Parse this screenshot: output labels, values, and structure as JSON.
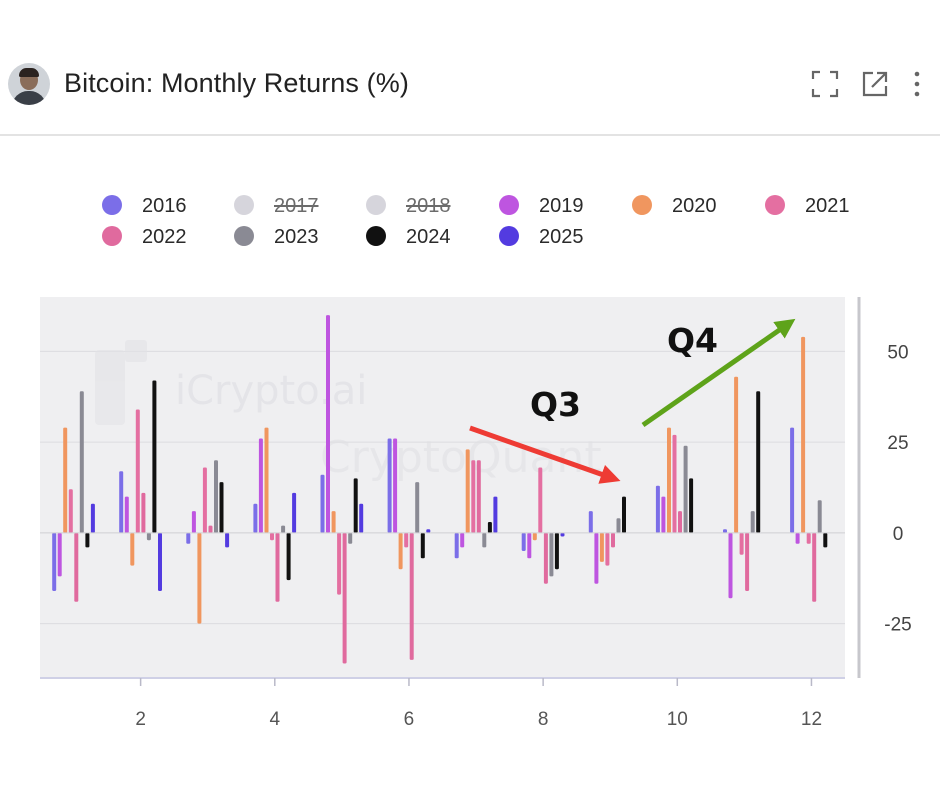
{
  "header": {
    "title": "Bitcoin: Monthly Returns (%)",
    "icons": [
      "avatar",
      "fullscreen-icon",
      "external-link-icon",
      "more-vertical-icon"
    ]
  },
  "watermarks": {
    "line1": "iCrypto.ai",
    "line2": "CryptoQuant"
  },
  "annotations": {
    "q3": "Q3",
    "q4": "Q4",
    "q3_arrow_color": "#ee3b34",
    "q4_arrow_color": "#5ea31a"
  },
  "chart_data": {
    "type": "bar",
    "title": "Bitcoin: Monthly Returns (%)",
    "x_ticks": [
      2,
      4,
      6,
      8,
      10,
      12
    ],
    "y_ticks": [
      50,
      25,
      0,
      -25
    ],
    "ylim": [
      -40,
      65
    ],
    "xlim": [
      0.5,
      12.5
    ],
    "grid": true,
    "legend_position": "top",
    "categories": [
      1,
      2,
      3,
      4,
      5,
      6,
      7,
      8,
      9,
      10,
      11,
      12
    ],
    "series": [
      {
        "name": "2016",
        "color": "#7b6ee8",
        "visible": true,
        "values": [
          -16,
          17,
          -3,
          8,
          16,
          26,
          -7,
          -5,
          6,
          13,
          1,
          29
        ]
      },
      {
        "name": "2017",
        "color": "#d6d5dc",
        "visible": false,
        "values": [
          0,
          0,
          0,
          0,
          0,
          0,
          0,
          0,
          0,
          0,
          0,
          0
        ]
      },
      {
        "name": "2018",
        "color": "#d6d5dc",
        "visible": false,
        "values": [
          0,
          0,
          0,
          0,
          0,
          0,
          0,
          0,
          0,
          0,
          0,
          0
        ]
      },
      {
        "name": "2019",
        "color": "#be55e0",
        "visible": true,
        "values": [
          -12,
          10,
          6,
          26,
          60,
          26,
          -4,
          -7,
          -14,
          10,
          -18,
          -3
        ]
      },
      {
        "name": "2020",
        "color": "#f0965f",
        "visible": true,
        "values": [
          29,
          -9,
          -25,
          29,
          6,
          -10,
          23,
          -2,
          -8,
          29,
          43,
          54
        ]
      },
      {
        "name": "2021",
        "color": "#e46fa1",
        "visible": true,
        "values": [
          12,
          34,
          18,
          -2,
          -17,
          -4,
          20,
          18,
          -9,
          27,
          -6,
          -3
        ]
      },
      {
        "name": "2022",
        "color": "#e06a9e",
        "visible": true,
        "values": [
          -19,
          11,
          2,
          -19,
          -36,
          -35,
          20,
          -14,
          -4,
          6,
          -16,
          -19
        ]
      },
      {
        "name": "2023",
        "color": "#8a8a94",
        "visible": true,
        "values": [
          39,
          -2,
          20,
          2,
          -3,
          14,
          -4,
          -12,
          4,
          24,
          6,
          9
        ]
      },
      {
        "name": "2024",
        "color": "#111111",
        "visible": true,
        "values": [
          -4,
          42,
          14,
          -13,
          15,
          -7,
          3,
          -10,
          10,
          15,
          39,
          -4
        ]
      },
      {
        "name": "2025",
        "color": "#533be0",
        "visible": true,
        "values": [
          8,
          -16,
          -4,
          11,
          8,
          1,
          10,
          -1,
          0,
          0,
          0,
          0
        ]
      }
    ]
  }
}
